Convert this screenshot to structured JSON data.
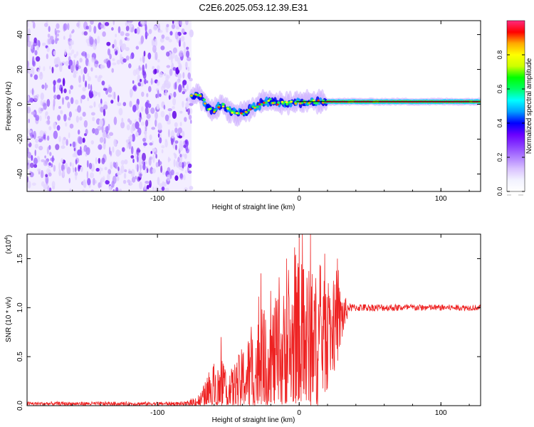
{
  "chart_data": [
    {
      "type": "heatmap",
      "title": "C2E6.2025.053.12.39.E31",
      "xlabel": "Height of straight line (km)",
      "ylabel": "Frequency (Hz)",
      "xlim": [
        -192,
        128
      ],
      "ylim": [
        -50,
        48
      ],
      "x_ticks": [
        -100,
        0,
        100
      ],
      "y_ticks": [
        -40,
        -20,
        0,
        20,
        40
      ],
      "noise_region_x": [
        -192,
        -76
      ],
      "signal_track": [
        {
          "x": -76,
          "y": 5
        },
        {
          "x": -72,
          "y": 6
        },
        {
          "x": -68,
          "y": 3
        },
        {
          "x": -64,
          "y": -2
        },
        {
          "x": -60,
          "y": -4
        },
        {
          "x": -55,
          "y": 0
        },
        {
          "x": -50,
          "y": -3
        },
        {
          "x": -45,
          "y": -5
        },
        {
          "x": -40,
          "y": -5
        },
        {
          "x": -35,
          "y": -3
        },
        {
          "x": -30,
          "y": -1
        },
        {
          "x": -25,
          "y": 1
        },
        {
          "x": -20,
          "y": 2
        },
        {
          "x": -15,
          "y": 0
        },
        {
          "x": -10,
          "y": 1
        },
        {
          "x": -5,
          "y": 1
        },
        {
          "x": 0,
          "y": 1
        },
        {
          "x": 10,
          "y": 1.5
        },
        {
          "x": 20,
          "y": 1.5
        },
        {
          "x": 40,
          "y": 1.5
        },
        {
          "x": 60,
          "y": 1.5
        },
        {
          "x": 80,
          "y": 1.5
        },
        {
          "x": 100,
          "y": 1.5
        },
        {
          "x": 128,
          "y": 1.5
        }
      ],
      "reference_line_y": 1.5,
      "colorbar": {
        "label": "Normalized spectral amplitude",
        "range": [
          0,
          1
        ],
        "ticks": [
          "0.0",
          "0.2",
          "0.4",
          "0.6",
          "0.8"
        ],
        "colormap": [
          "#ffffff",
          "#f2f2ff",
          "#d9c2ff",
          "#b080ff",
          "#8a3dff",
          "#6a00ff",
          "#0000ff",
          "#00a0ff",
          "#00ffff",
          "#00ff66",
          "#00ff00",
          "#ccff00",
          "#ffff00",
          "#ffaa00",
          "#ff0000",
          "#ff2a80"
        ]
      }
    },
    {
      "type": "line",
      "xlabel": "Height of straight line (km)",
      "ylabel": "SNR (10 * v/v)",
      "y_multiplier": "(x10",
      "y_multiplier_exp": "4",
      "xlim": [
        -192,
        128
      ],
      "ylim": [
        0,
        1.75
      ],
      "x_ticks": [
        -100,
        0,
        100
      ],
      "y_ticks": [
        0.0,
        0.5,
        1.0,
        1.5
      ],
      "series": [
        {
          "color": "#ee2222",
          "envelope": [
            {
              "x": -192,
              "base": 0.02,
              "amp": 0.02
            },
            {
              "x": -80,
              "base": 0.02,
              "amp": 0.02
            },
            {
              "x": -70,
              "base": 0.05,
              "amp": 0.08
            },
            {
              "x": -60,
              "base": 0.15,
              "amp": 0.3
            },
            {
              "x": -50,
              "base": 0.12,
              "amp": 0.2
            },
            {
              "x": -40,
              "base": 0.25,
              "amp": 0.35
            },
            {
              "x": -30,
              "base": 0.35,
              "amp": 0.55
            },
            {
              "x": -20,
              "base": 0.45,
              "amp": 0.6
            },
            {
              "x": -10,
              "base": 0.5,
              "amp": 0.7
            },
            {
              "x": 0,
              "base": 0.6,
              "amp": 0.9
            },
            {
              "x": 10,
              "base": 0.62,
              "amp": 0.75
            },
            {
              "x": 20,
              "base": 0.7,
              "amp": 0.55
            },
            {
              "x": 28,
              "base": 0.85,
              "amp": 0.4
            },
            {
              "x": 35,
              "base": 1.0,
              "amp": 0.04
            },
            {
              "x": 128,
              "base": 1.0,
              "amp": 0.03
            }
          ],
          "peaks": [
            {
              "x": -55,
              "y": 0.7
            },
            {
              "x": -27,
              "y": 1.35
            },
            {
              "x": -9,
              "y": 1.5
            },
            {
              "x": 0,
              "y": 1.75
            },
            {
              "x": 8,
              "y": 1.75
            },
            {
              "x": 18,
              "y": 1.55
            },
            {
              "x": 27,
              "y": 1.5
            }
          ]
        }
      ]
    }
  ]
}
